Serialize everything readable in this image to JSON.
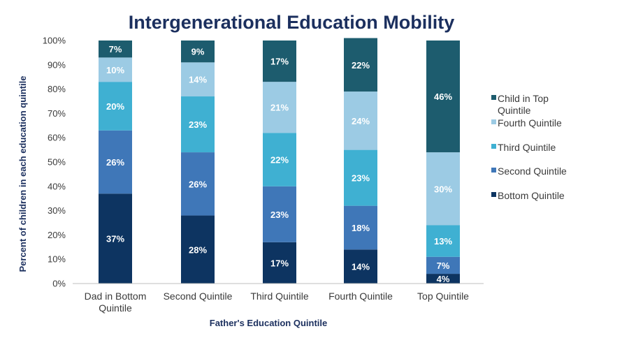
{
  "chart_data": {
    "type": "bar",
    "stacked": true,
    "title": "Intergenerational Education Mobility",
    "xlabel": "Father's Education Quintile",
    "ylabel": "Percent of children in each education quintile",
    "ylim": [
      0,
      100
    ],
    "yticks": [
      "0%",
      "10%",
      "20%",
      "30%",
      "40%",
      "50%",
      "60%",
      "70%",
      "80%",
      "90%",
      "100%"
    ],
    "categories": [
      [
        "Dad in Bottom",
        "Quintile"
      ],
      [
        "Second Quintile"
      ],
      [
        "Third Quintile"
      ],
      [
        "Fourth Quintile"
      ],
      [
        "Top Quintile"
      ]
    ],
    "series": [
      {
        "name": "Bottom Quintile",
        "color": "#0d3461",
        "values": [
          37,
          28,
          17,
          14,
          4
        ]
      },
      {
        "name": "Second Quintile",
        "color": "#3f77b8",
        "values": [
          26,
          26,
          23,
          18,
          7
        ]
      },
      {
        "name": "Third Quintile",
        "color": "#3fb0d2",
        "values": [
          20,
          23,
          22,
          23,
          13
        ]
      },
      {
        "name": "Fourth Quintile",
        "color": "#9ccbe4",
        "values": [
          10,
          14,
          21,
          24,
          30
        ]
      },
      {
        "name": "Child in Top Quintile",
        "color": "#1d5c6e",
        "values": [
          7,
          9,
          17,
          22,
          46
        ]
      }
    ],
    "legend": {
      "position": "right",
      "entries": [
        {
          "lines": [
            "Child in Top",
            "Quintile"
          ],
          "color": "#1d5c6e"
        },
        {
          "lines": [
            "Fourth Quintile"
          ],
          "color": "#9ccbe4"
        },
        {
          "lines": [
            "Third Quintile"
          ],
          "color": "#3fb0d2"
        },
        {
          "lines": [
            "Second Quintile"
          ],
          "color": "#3f77b8"
        },
        {
          "lines": [
            "Bottom Quintile"
          ],
          "color": "#0d3461"
        }
      ]
    },
    "grid": false
  }
}
